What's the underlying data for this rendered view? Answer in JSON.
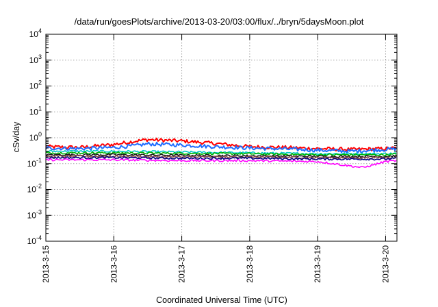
{
  "chart_data": {
    "type": "line",
    "title": "/data/run/goesPlots/archive/2013-03-20/03:00/flux/../bryn/5daysMoon.plot",
    "xlabel": "Coordinated Universal Time (UTC)",
    "ylabel": "cSv/day",
    "y_scale": "log",
    "ylim": [
      0.0001,
      10000
    ],
    "xlim": [
      "2013-03-15T00:00",
      "2013-03-20T04:00"
    ],
    "grid": true,
    "legend": "none",
    "y_ticks": [
      {
        "base": "10",
        "exp": "-4",
        "value": 0.0001
      },
      {
        "base": "10",
        "exp": "-3",
        "value": 0.001
      },
      {
        "base": "10",
        "exp": "-2",
        "value": 0.01
      },
      {
        "base": "10",
        "exp": "-1",
        "value": 0.1
      },
      {
        "base": "10",
        "exp": "0",
        "value": 1
      },
      {
        "base": "10",
        "exp": "1",
        "value": 10
      },
      {
        "base": "10",
        "exp": "2",
        "value": 100
      },
      {
        "base": "10",
        "exp": "3",
        "value": 1000
      },
      {
        "base": "10",
        "exp": "4",
        "value": 10000
      }
    ],
    "x_ticks": [
      {
        "label": "2013-3-15",
        "t": "2013-03-15T00:00"
      },
      {
        "label": "2013-3-16",
        "t": "2013-03-16T00:00"
      },
      {
        "label": "2013-3-17",
        "t": "2013-03-17T00:00"
      },
      {
        "label": "2013-3-18",
        "t": "2013-03-18T00:00"
      },
      {
        "label": "2013-3-19",
        "t": "2013-03-19T00:00"
      },
      {
        "label": "2013-3-20",
        "t": "2013-03-20T00:00"
      }
    ],
    "series": [
      {
        "color": "#ff0000",
        "x": [
          "2013-03-15T00:00",
          "2013-03-15T12:00",
          "2013-03-16T00:00",
          "2013-03-16T08:00",
          "2013-03-16T12:00",
          "2013-03-17T00:00",
          "2013-03-17T12:00",
          "2013-03-18T00:00",
          "2013-03-18T12:00",
          "2013-03-19T00:00",
          "2013-03-19T12:00",
          "2013-03-20T00:00",
          "2013-03-20T04:00"
        ],
        "y": [
          0.45,
          0.42,
          0.55,
          0.75,
          0.85,
          0.75,
          0.6,
          0.45,
          0.42,
          0.38,
          0.35,
          0.38,
          0.4
        ]
      },
      {
        "color": "#1e6cff",
        "x": [
          "2013-03-15T00:00",
          "2013-03-15T12:00",
          "2013-03-16T00:00",
          "2013-03-16T08:00",
          "2013-03-16T12:00",
          "2013-03-17T00:00",
          "2013-03-17T12:00",
          "2013-03-18T00:00",
          "2013-03-18T12:00",
          "2013-03-19T00:00",
          "2013-03-19T12:00",
          "2013-03-20T00:00",
          "2013-03-20T04:00"
        ],
        "y": [
          0.4,
          0.38,
          0.42,
          0.5,
          0.58,
          0.52,
          0.45,
          0.4,
          0.37,
          0.33,
          0.3,
          0.35,
          0.38
        ]
      },
      {
        "color": "#00c8c8",
        "x": [
          "2013-03-15T00:00",
          "2013-03-16T00:00",
          "2013-03-17T00:00",
          "2013-03-18T00:00",
          "2013-03-19T00:00",
          "2013-03-20T00:00",
          "2013-03-20T04:00"
        ],
        "y": [
          0.3,
          0.3,
          0.28,
          0.26,
          0.24,
          0.24,
          0.25
        ]
      },
      {
        "color": "#00b400",
        "x": [
          "2013-03-15T00:00",
          "2013-03-16T00:00",
          "2013-03-17T00:00",
          "2013-03-18T00:00",
          "2013-03-19T00:00",
          "2013-03-20T00:00",
          "2013-03-20T04:00"
        ],
        "y": [
          0.26,
          0.26,
          0.25,
          0.24,
          0.22,
          0.22,
          0.23
        ]
      },
      {
        "color": "#1a1a1a",
        "x": [
          "2013-03-15T00:00",
          "2013-03-16T00:00",
          "2013-03-17T00:00",
          "2013-03-18T00:00",
          "2013-03-19T00:00",
          "2013-03-20T00:00",
          "2013-03-20T04:00"
        ],
        "y": [
          0.22,
          0.22,
          0.21,
          0.2,
          0.19,
          0.19,
          0.2
        ]
      },
      {
        "color": "#8b4a4a",
        "x": [
          "2013-03-15T00:00",
          "2013-03-16T00:00",
          "2013-03-17T00:00",
          "2013-03-18T00:00",
          "2013-03-19T00:00",
          "2013-03-20T00:00",
          "2013-03-20T04:00"
        ],
        "y": [
          0.19,
          0.19,
          0.18,
          0.18,
          0.17,
          0.17,
          0.18
        ]
      },
      {
        "color": "#000080",
        "x": [
          "2013-03-15T00:00",
          "2013-03-16T00:00",
          "2013-03-17T00:00",
          "2013-03-18T00:00",
          "2013-03-19T00:00",
          "2013-03-20T00:00",
          "2013-03-20T04:00"
        ],
        "y": [
          0.17,
          0.17,
          0.16,
          0.16,
          0.15,
          0.15,
          0.16
        ]
      },
      {
        "color": "#ff00ff",
        "x": [
          "2013-03-15T00:00",
          "2013-03-16T00:00",
          "2013-03-17T00:00",
          "2013-03-18T00:00",
          "2013-03-19T00:00",
          "2013-03-19T16:00",
          "2013-03-20T00:00",
          "2013-03-20T04:00"
        ],
        "y": [
          0.14,
          0.14,
          0.13,
          0.13,
          0.12,
          0.07,
          0.12,
          0.13
        ]
      }
    ]
  }
}
